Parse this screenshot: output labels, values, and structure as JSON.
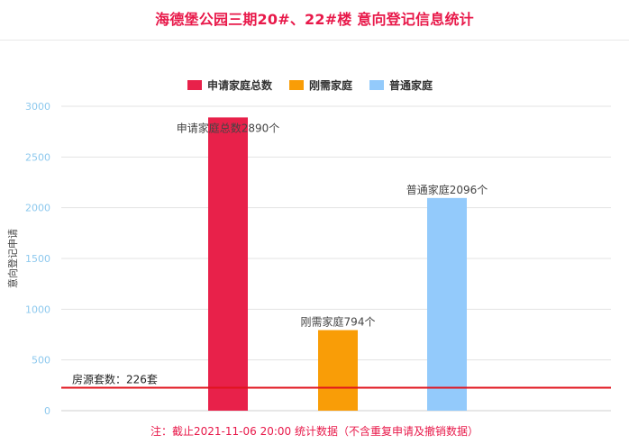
{
  "title": "海德堡公园三期20#、22#楼 意向登记信息统计",
  "note": "注：截止2021-11-06 20:00 统计数据（不含重复申请及撤销数据）",
  "chart_data": {
    "type": "bar",
    "title": "海德堡公园三期20#、22#楼 意向登记信息统计",
    "ylabel": "意向登记申请",
    "xlabel": "",
    "ylim": [
      0,
      3000
    ],
    "yticks": [
      0,
      500,
      1000,
      1500,
      2000,
      2500,
      3000
    ],
    "grid": true,
    "legend_position": "top",
    "series": [
      {
        "name": "申请家庭总数",
        "value": 2890,
        "label": "申请家庭总数2890个",
        "color": "#e8214a"
      },
      {
        "name": "刚需家庭",
        "value": 794,
        "label": "刚需家庭794个",
        "color": "#f99d07"
      },
      {
        "name": "普通家庭",
        "value": 2096,
        "label": "普通家庭2096个",
        "color": "#93cafb"
      }
    ],
    "reference_line": {
      "value": 226,
      "label": "房源套数：226套",
      "color": "#e0141e"
    }
  }
}
